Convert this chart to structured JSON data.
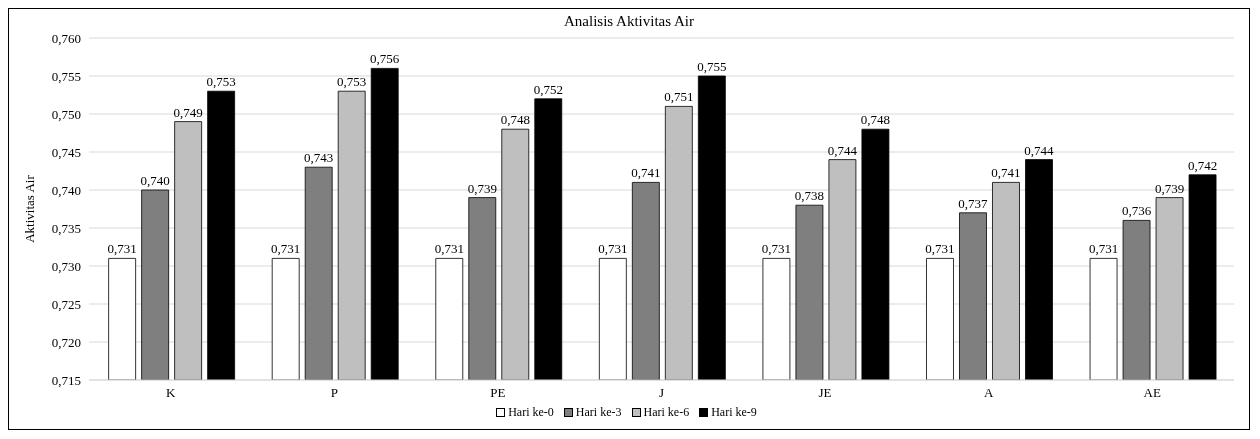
{
  "chart_data": {
    "type": "bar",
    "title": "Analisis Aktivitas Air",
    "ylabel": "Aktivitas Air",
    "categories": [
      "K",
      "P",
      "PE",
      "J",
      "JE",
      "A",
      "AE"
    ],
    "series": [
      {
        "name": "Hari ke-0",
        "color": "#ffffff",
        "values": [
          0.731,
          0.731,
          0.731,
          0.731,
          0.731,
          0.731,
          0.731
        ],
        "value_labels": [
          "0,731",
          "0,731",
          "0,731",
          "0,731",
          "0,731",
          "0,731",
          "0,731"
        ]
      },
      {
        "name": "Hari ke-3",
        "color": "#7f7f7f",
        "values": [
          0.74,
          0.743,
          0.739,
          0.741,
          0.738,
          0.737,
          0.736
        ],
        "value_labels": [
          "0,740",
          "0,743",
          "0,739",
          "0,741",
          "0,738",
          "0,737",
          "0,736"
        ]
      },
      {
        "name": "Hari ke-6",
        "color": "#bfbfbf",
        "values": [
          0.749,
          0.753,
          0.748,
          0.751,
          0.744,
          0.741,
          0.739
        ],
        "value_labels": [
          "0,749",
          "0,753",
          "0,748",
          "0,751",
          "0,744",
          "0,741",
          "0,739"
        ]
      },
      {
        "name": "Hari ke-9",
        "color": "#000000",
        "values": [
          0.753,
          0.756,
          0.752,
          0.755,
          0.748,
          0.744,
          0.742
        ],
        "value_labels": [
          "0,753",
          "0,756",
          "0,752",
          "0,755",
          "0,748",
          "0,744",
          "0,742"
        ]
      }
    ],
    "ylim": [
      0.715,
      0.76
    ],
    "yticks": [
      {
        "value": 0.715,
        "label": "0,715"
      },
      {
        "value": 0.72,
        "label": "0,720"
      },
      {
        "value": 0.725,
        "label": "0,725"
      },
      {
        "value": 0.73,
        "label": "0,730"
      },
      {
        "value": 0.735,
        "label": "0,735"
      },
      {
        "value": 0.74,
        "label": "0,740"
      },
      {
        "value": 0.745,
        "label": "0,745"
      },
      {
        "value": 0.75,
        "label": "0,750"
      },
      {
        "value": 0.755,
        "label": "0,755"
      },
      {
        "value": 0.76,
        "label": "0,760"
      }
    ],
    "grid": "y",
    "legend": "bottom"
  }
}
